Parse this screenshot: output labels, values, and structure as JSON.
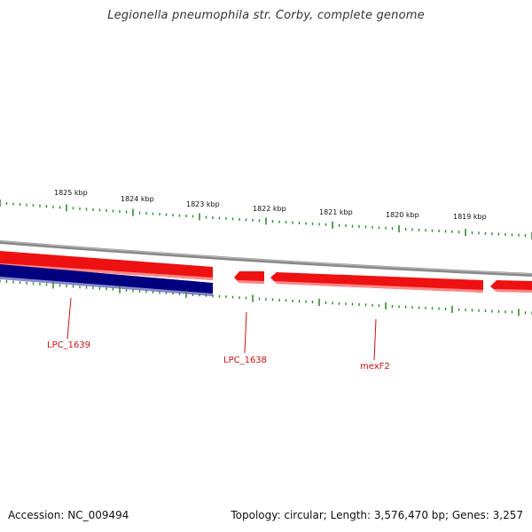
{
  "title": "Legionella pneumophila str. Corby, complete genome",
  "footer": {
    "accession": "Accession: NC_009494",
    "summary": "Topology: circular; Length: 3,576,470 bp; Genes: 3,257"
  },
  "colors": {
    "forward_feature": "#ee1111",
    "reverse_feature": "#000080",
    "backbone": "#888888",
    "tick": "#338833",
    "gene_label": "#cc1111"
  },
  "ruler": {
    "labels": [
      {
        "text": "1825 kbp",
        "kbp": 1825
      },
      {
        "text": "1824 kbp",
        "kbp": 1824
      },
      {
        "text": "1823 kbp",
        "kbp": 1823
      },
      {
        "text": "1822 kbp",
        "kbp": 1822
      },
      {
        "text": "1821 kbp",
        "kbp": 1821
      },
      {
        "text": "1820 kbp",
        "kbp": 1820
      },
      {
        "text": "1819 kbp",
        "kbp": 1819
      }
    ]
  },
  "genes": [
    {
      "label": "LPC_1639",
      "strand": "reverse"
    },
    {
      "label": "LPC_1638",
      "strand": "forward"
    },
    {
      "label": "mexF2",
      "strand": "forward"
    }
  ]
}
